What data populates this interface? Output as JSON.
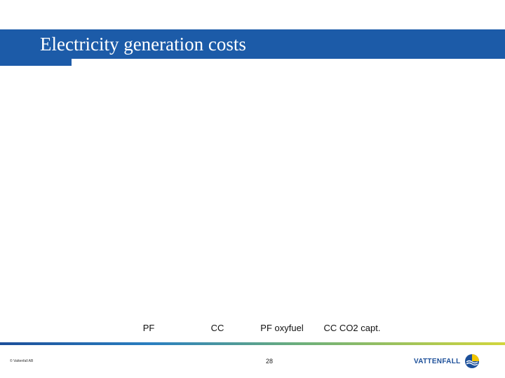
{
  "slide": {
    "title": "Electricity generation costs",
    "categories": [
      "PF",
      "CC",
      "PF oxyfuel",
      "CC CO2 capt."
    ],
    "footer": {
      "copyright": "© Vattenfall AB",
      "page_number": "28",
      "logo_text": "VATTENFALL"
    },
    "colors": {
      "title_band": "#1c5ba8",
      "logo_blue": "#1c4f99",
      "logo_yellow": "#f2c600"
    },
    "icons": {
      "logo": "vattenfall-logo-icon"
    }
  }
}
